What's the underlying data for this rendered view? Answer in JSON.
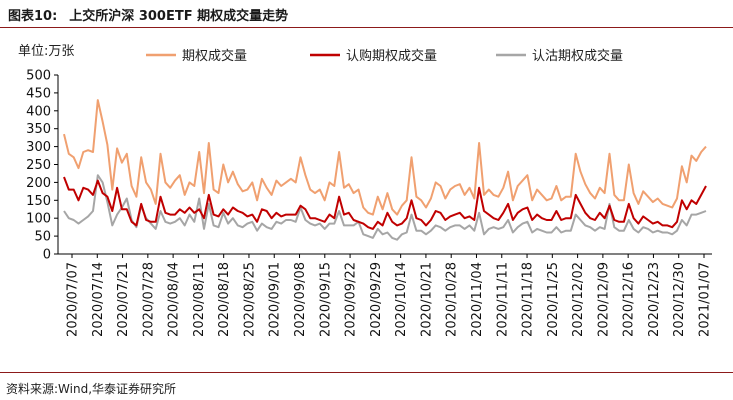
{
  "header": {
    "figure_number": "图表10:",
    "title": "上交所沪深 300ETF 期权成交量走势"
  },
  "unit_label": "单位:万张",
  "source_label": "资料来源:Wind,华泰证券研究所",
  "colors": {
    "total": "#f0a070",
    "call": "#c00000",
    "put": "#a6a6a6",
    "rule": "#8c1a1a"
  },
  "chart_data": {
    "type": "line",
    "title": "",
    "xlabel": "",
    "ylabel": "",
    "ylim": [
      0,
      500
    ],
    "yticks": [
      0,
      50,
      100,
      150,
      200,
      250,
      300,
      350,
      400,
      450,
      500
    ],
    "grid": false,
    "legend_position": "top",
    "x_tick_labels": [
      "2020/07/07",
      "2020/07/14",
      "2020/07/21",
      "2020/07/28",
      "2020/08/04",
      "2020/08/11",
      "2020/08/18",
      "2020/08/25",
      "2020/09/01",
      "2020/09/08",
      "2020/09/15",
      "2020/09/22",
      "2020/09/29",
      "2020/10/14",
      "2020/10/21",
      "2020/10/28",
      "2020/11/04",
      "2020/11/11",
      "2020/11/18",
      "2020/11/25",
      "2020/12/02",
      "2020/12/09",
      "2020/12/16",
      "2020/12/23",
      "2020/12/30",
      "2021/01/07"
    ],
    "series": [
      {
        "name": "期权成交量",
        "color": "#f0a070",
        "values": [
          335,
          280,
          270,
          240,
          285,
          290,
          285,
          430,
          370,
          305,
          180,
          295,
          255,
          280,
          190,
          160,
          270,
          200,
          180,
          140,
          280,
          200,
          185,
          205,
          220,
          165,
          200,
          190,
          285,
          170,
          310,
          180,
          170,
          250,
          200,
          230,
          195,
          175,
          180,
          200,
          150,
          210,
          185,
          165,
          205,
          190,
          200,
          210,
          200,
          270,
          220,
          180,
          170,
          180,
          150,
          200,
          190,
          285,
          185,
          195,
          170,
          180,
          130,
          115,
          110,
          160,
          125,
          170,
          125,
          110,
          135,
          150,
          270,
          160,
          150,
          130,
          155,
          200,
          190,
          155,
          180,
          190,
          195,
          165,
          185,
          155,
          310,
          165,
          180,
          165,
          160,
          185,
          230,
          150,
          190,
          205,
          220,
          150,
          180,
          165,
          150,
          155,
          190,
          150,
          160,
          160,
          280,
          230,
          195,
          170,
          155,
          185,
          170,
          280,
          165,
          150,
          150,
          250,
          170,
          140,
          175,
          160,
          145,
          155,
          140,
          135,
          130,
          155,
          245,
          200,
          275,
          260,
          285,
          300
        ]
      },
      {
        "name": "认购期权成交量",
        "color": "#c00000",
        "values": [
          215,
          180,
          180,
          150,
          185,
          180,
          165,
          205,
          170,
          160,
          120,
          185,
          125,
          125,
          90,
          80,
          140,
          95,
          90,
          90,
          160,
          115,
          110,
          110,
          125,
          115,
          130,
          115,
          125,
          100,
          165,
          110,
          105,
          125,
          110,
          130,
          120,
          115,
          105,
          110,
          90,
          125,
          120,
          100,
          115,
          105,
          110,
          110,
          110,
          135,
          125,
          100,
          100,
          95,
          90,
          110,
          100,
          160,
          110,
          115,
          95,
          90,
          85,
          75,
          70,
          90,
          80,
          115,
          90,
          80,
          85,
          100,
          150,
          100,
          95,
          80,
          95,
          120,
          115,
          95,
          105,
          110,
          115,
          100,
          105,
          95,
          185,
          120,
          110,
          100,
          95,
          115,
          140,
          95,
          115,
          125,
          130,
          95,
          110,
          100,
          95,
          95,
          120,
          95,
          100,
          100,
          165,
          140,
          115,
          100,
          95,
          115,
          100,
          135,
          95,
          90,
          90,
          140,
          100,
          85,
          105,
          95,
          85,
          90,
          80,
          80,
          75,
          90,
          150,
          125,
          150,
          140,
          165,
          190
        ]
      },
      {
        "name": "认沽期权成交量",
        "color": "#a6a6a6",
        "values": [
          120,
          100,
          95,
          85,
          95,
          105,
          120,
          220,
          200,
          145,
          80,
          110,
          130,
          155,
          95,
          75,
          135,
          100,
          85,
          70,
          120,
          90,
          85,
          90,
          100,
          80,
          110,
          90,
          155,
          70,
          140,
          80,
          75,
          115,
          85,
          100,
          80,
          75,
          85,
          90,
          65,
          85,
          75,
          70,
          90,
          85,
          95,
          95,
          90,
          130,
          95,
          85,
          80,
          85,
          70,
          85,
          85,
          120,
          80,
          80,
          80,
          90,
          55,
          50,
          45,
          70,
          55,
          60,
          45,
          40,
          55,
          60,
          110,
          65,
          65,
          55,
          65,
          80,
          75,
          65,
          75,
          80,
          80,
          70,
          80,
          65,
          115,
          55,
          70,
          75,
          70,
          75,
          95,
          60,
          75,
          85,
          90,
          60,
          70,
          65,
          60,
          60,
          75,
          60,
          65,
          65,
          110,
          95,
          80,
          75,
          65,
          75,
          70,
          140,
          75,
          65,
          65,
          95,
          70,
          60,
          75,
          70,
          60,
          65,
          60,
          60,
          55,
          65,
          95,
          80,
          110,
          110,
          115,
          120
        ]
      }
    ]
  }
}
